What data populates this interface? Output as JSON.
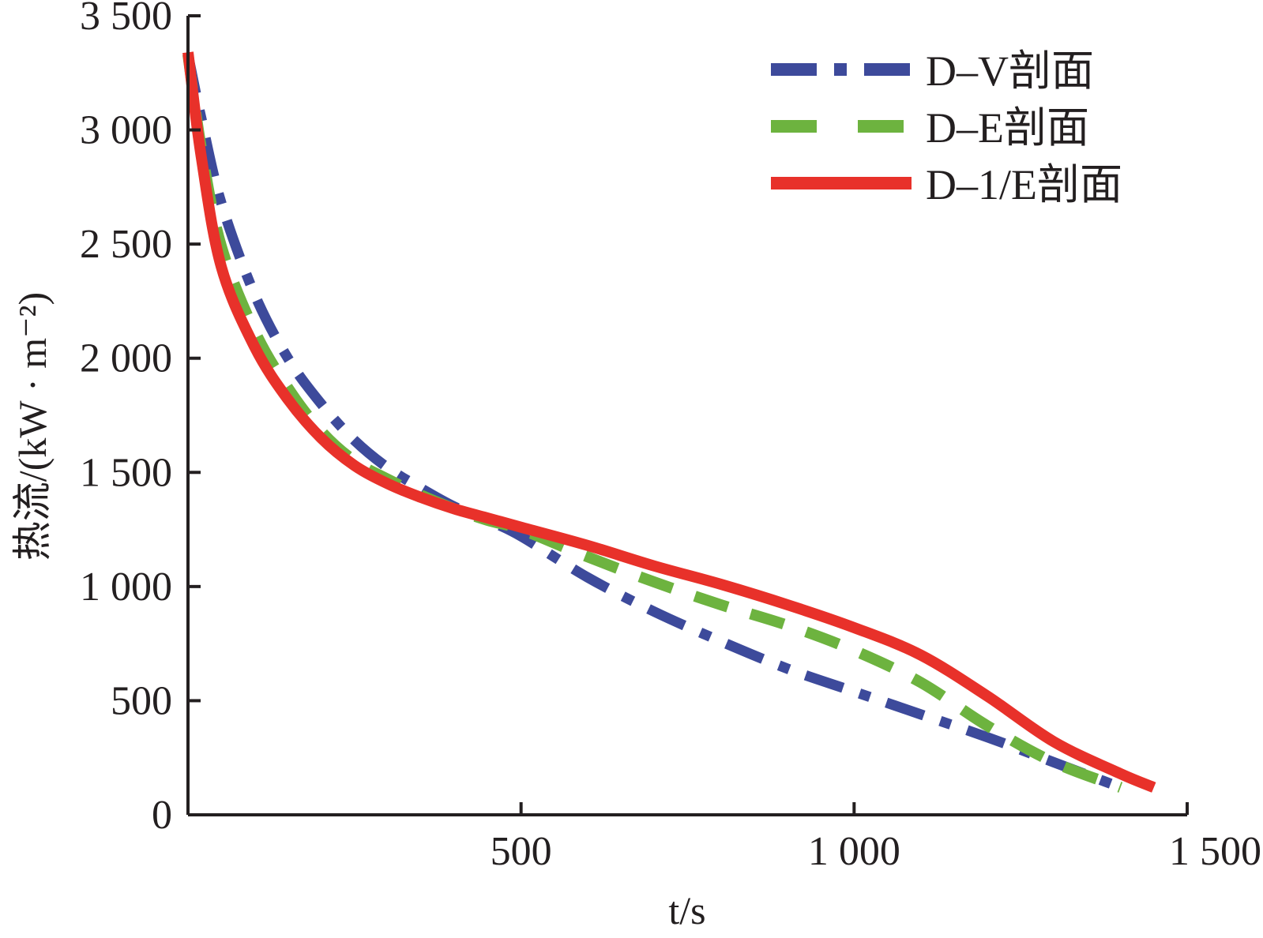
{
  "chart_data": {
    "type": "line",
    "title": "",
    "xlabel": "t/s",
    "ylabel": "热流/(kW · m⁻²)",
    "xlim": [
      0,
      1500
    ],
    "ylim": [
      0,
      3500
    ],
    "x_ticks": [
      500,
      1000,
      1500
    ],
    "x_tick_labels": [
      "500",
      "1 000",
      "1 500"
    ],
    "y_ticks": [
      0,
      500,
      1000,
      1500,
      2000,
      2500,
      3000,
      3500
    ],
    "y_tick_labels": [
      "0",
      "500",
      "1 000",
      "1 500",
      "2 000",
      "2 500",
      "3 000",
      "3 500"
    ],
    "grid": false,
    "legend_position": "top-right",
    "series": [
      {
        "name": "D–V剖面",
        "color": "#3d4a9b",
        "style": "dash-dot",
        "x": [
          0,
          20,
          50,
          100,
          150,
          200,
          250,
          300,
          350,
          400,
          450,
          500,
          600,
          700,
          800,
          900,
          1000,
          1100,
          1200,
          1300,
          1400
        ],
        "y": [
          3330,
          3050,
          2680,
          2280,
          2000,
          1800,
          1640,
          1520,
          1430,
          1350,
          1290,
          1220,
          1040,
          890,
          760,
          640,
          540,
          440,
          340,
          230,
          120
        ]
      },
      {
        "name": "D–E剖面",
        "color": "#6db33f",
        "style": "dashed",
        "x": [
          0,
          20,
          50,
          100,
          150,
          200,
          250,
          300,
          350,
          400,
          450,
          500,
          600,
          700,
          800,
          900,
          1000,
          1100,
          1200,
          1300,
          1400
        ],
        "y": [
          3330,
          2920,
          2490,
          2120,
          1870,
          1680,
          1550,
          1470,
          1400,
          1340,
          1290,
          1250,
          1130,
          1020,
          920,
          830,
          720,
          580,
          390,
          230,
          120
        ]
      },
      {
        "name": "D–1/E剖面",
        "color": "#e8312a",
        "style": "solid",
        "x": [
          0,
          20,
          50,
          100,
          150,
          200,
          250,
          300,
          350,
          400,
          450,
          500,
          600,
          700,
          800,
          900,
          1000,
          1100,
          1200,
          1300,
          1400,
          1450
        ],
        "y": [
          3340,
          2880,
          2400,
          2050,
          1820,
          1650,
          1530,
          1450,
          1390,
          1340,
          1300,
          1260,
          1180,
          1090,
          1010,
          920,
          820,
          700,
          520,
          320,
          180,
          120
        ]
      }
    ]
  }
}
